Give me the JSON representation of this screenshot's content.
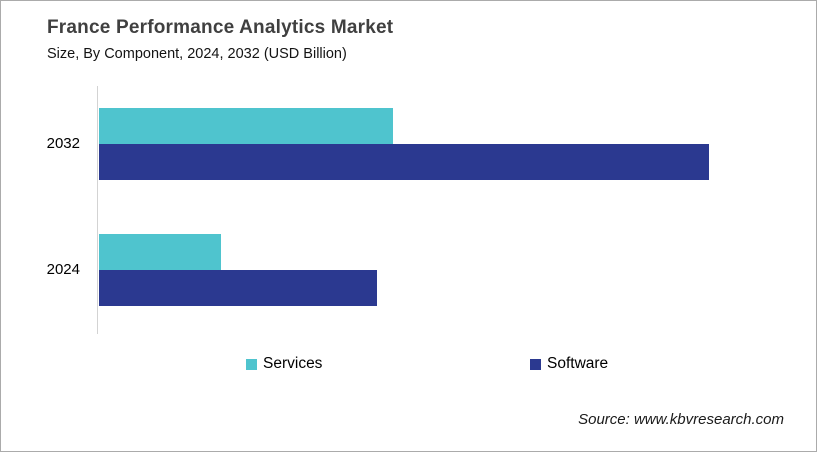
{
  "header": {
    "title": "France Performance Analytics Market",
    "subtitle": "Size, By Component, 2024, 2032 (USD Billion)"
  },
  "footer": {
    "source": "Source: www.kbvresearch.com"
  },
  "colors": {
    "services": "#4FC4CE",
    "software": "#2B3990",
    "title_text": "#404040",
    "axis_line": "#d3d3d3",
    "frame_border": "#ababab"
  },
  "chart_data": {
    "type": "bar",
    "orientation": "horizontal",
    "title": "France Performance Analytics Market",
    "subtitle": "Size, By Component, 2024, 2032 (USD Billion)",
    "unit": "USD Billion",
    "value_labels_shown": false,
    "axis_values_shown": false,
    "grid": false,
    "legend_position": "bottom",
    "categories": [
      "2032",
      "2024"
    ],
    "series": [
      {
        "name": "Services",
        "color": "#4FC4CE",
        "values_relative": [
          0.482,
          0.2
        ]
      },
      {
        "name": "Software",
        "color": "#2B3990",
        "values_relative": [
          1.0,
          0.456
        ]
      }
    ],
    "note": "No numeric axis or data labels are shown in the figure; values_relative are bar lengths measured relative to the longest bar (Software 2032 = 1.0)."
  }
}
